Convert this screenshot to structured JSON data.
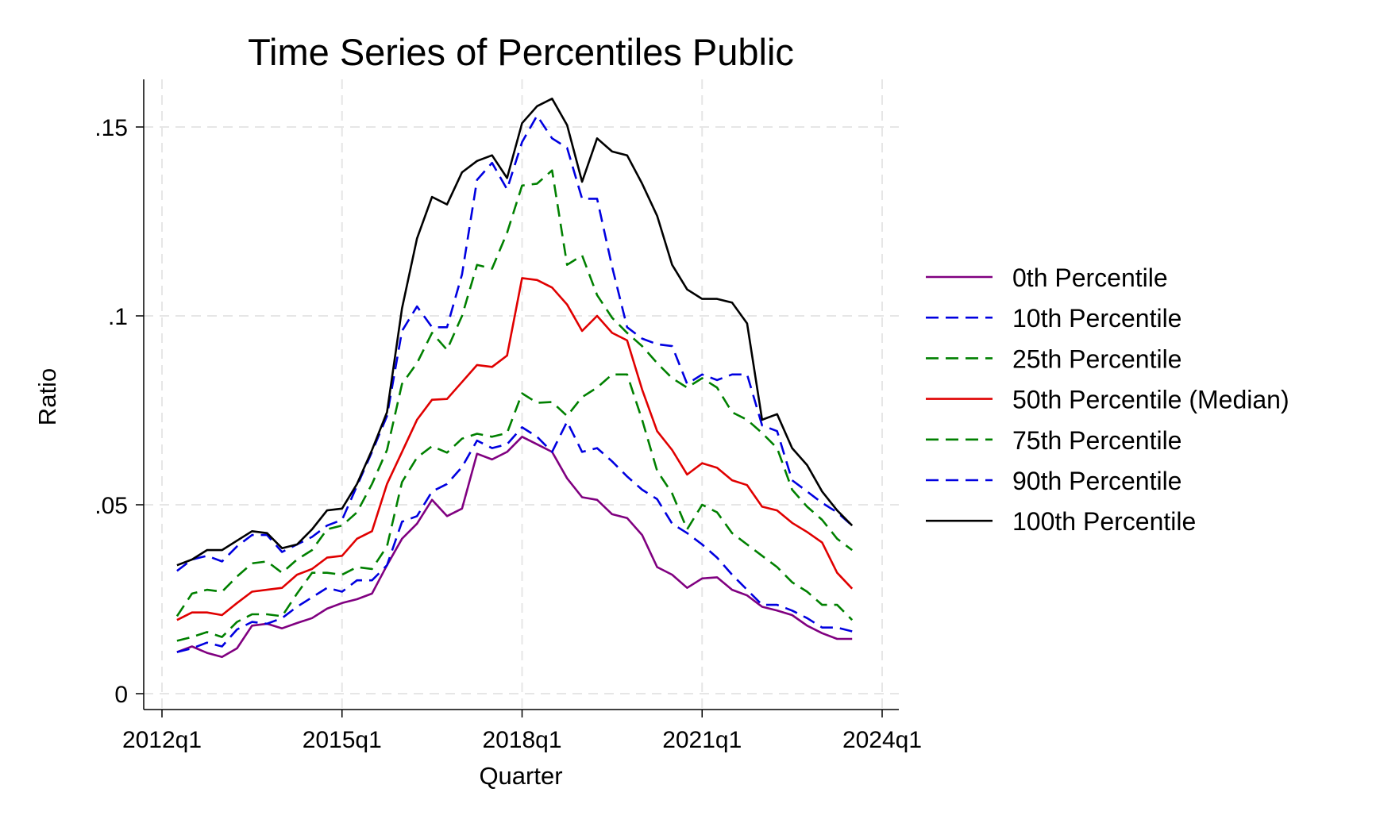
{
  "chart_data": {
    "type": "line",
    "title": "Time Series of Percentiles Public",
    "xlabel": "Quarter",
    "ylabel": "Ratio",
    "xlim": [
      "2012q1",
      "2024q1"
    ],
    "ylim": [
      0,
      0.16
    ],
    "x_ticks": [
      "2012q1",
      "2015q1",
      "2018q1",
      "2021q1",
      "2024q1"
    ],
    "y_ticks": [
      {
        "value": 0,
        "label": "0"
      },
      {
        "value": 0.05,
        "label": ".05"
      },
      {
        "value": 0.1,
        "label": ".1"
      },
      {
        "value": 0.15,
        "label": ".15"
      }
    ],
    "grid": true,
    "legend_position": "right",
    "x": [
      "2012q2",
      "2012q3",
      "2012q4",
      "2013q1",
      "2013q2",
      "2013q3",
      "2013q4",
      "2014q1",
      "2014q2",
      "2014q3",
      "2014q4",
      "2015q1",
      "2015q2",
      "2015q3",
      "2015q4",
      "2016q1",
      "2016q2",
      "2016q3",
      "2016q4",
      "2017q1",
      "2017q2",
      "2017q3",
      "2017q4",
      "2018q1",
      "2018q2",
      "2018q3",
      "2018q4",
      "2019q1",
      "2019q2",
      "2019q3",
      "2019q4",
      "2020q1",
      "2020q2",
      "2020q3",
      "2020q4",
      "2021q1",
      "2021q2",
      "2021q3",
      "2021q4",
      "2022q1",
      "2022q2",
      "2022q3",
      "2022q4",
      "2023q1",
      "2023q2",
      "2023q3"
    ],
    "series": [
      {
        "name": "0th Percentile",
        "color": "#800080",
        "dash": "solid",
        "values": [
          0.011,
          0.0125,
          0.0108,
          0.0097,
          0.012,
          0.018,
          0.0185,
          0.0173,
          0.0187,
          0.02,
          0.0225,
          0.024,
          0.025,
          0.0265,
          0.034,
          0.041,
          0.045,
          0.0513,
          0.047,
          0.049,
          0.0635,
          0.062,
          0.064,
          0.068,
          0.066,
          0.064,
          0.057,
          0.052,
          0.0513,
          0.0475,
          0.0465,
          0.042,
          0.0335,
          0.0315,
          0.028,
          0.0305,
          0.0308,
          0.0275,
          0.026,
          0.023,
          0.022,
          0.0208,
          0.018,
          0.016,
          0.0145,
          0.0145
        ]
      },
      {
        "name": "10th Percentile",
        "color": "#0000e0",
        "dash": "dashed",
        "values": [
          0.011,
          0.012,
          0.0135,
          0.0125,
          0.017,
          0.019,
          0.0185,
          0.02,
          0.023,
          0.0255,
          0.028,
          0.027,
          0.03,
          0.03,
          0.034,
          0.0455,
          0.047,
          0.0535,
          0.0555,
          0.06,
          0.067,
          0.065,
          0.066,
          0.0705,
          0.068,
          0.064,
          0.072,
          0.064,
          0.065,
          0.0615,
          0.0575,
          0.054,
          0.0515,
          0.045,
          0.0425,
          0.0395,
          0.036,
          0.0315,
          0.0275,
          0.0235,
          0.0235,
          0.022,
          0.02,
          0.0175,
          0.0175,
          0.0165
        ]
      },
      {
        "name": "25th Percentile",
        "color": "#008000",
        "dash": "dashed",
        "values": [
          0.014,
          0.015,
          0.0163,
          0.015,
          0.019,
          0.021,
          0.021,
          0.0205,
          0.0265,
          0.032,
          0.032,
          0.0315,
          0.0335,
          0.033,
          0.039,
          0.056,
          0.0625,
          0.0655,
          0.0638,
          0.0675,
          0.0688,
          0.068,
          0.069,
          0.0795,
          0.077,
          0.0772,
          0.0735,
          0.0785,
          0.081,
          0.0845,
          0.0845,
          0.0725,
          0.059,
          0.053,
          0.0435,
          0.05,
          0.048,
          0.0425,
          0.0395,
          0.0365,
          0.0335,
          0.0295,
          0.027,
          0.0235,
          0.0235,
          0.0195
        ]
      },
      {
        "name": "50th Percentile (Median)",
        "color": "#e00000",
        "dash": "solid",
        "values": [
          0.0195,
          0.0215,
          0.0215,
          0.0208,
          0.024,
          0.027,
          0.0275,
          0.028,
          0.0315,
          0.033,
          0.036,
          0.0365,
          0.041,
          0.043,
          0.0555,
          0.064,
          0.0725,
          0.0778,
          0.078,
          0.0825,
          0.087,
          0.0865,
          0.0895,
          0.11,
          0.1095,
          0.1075,
          0.103,
          0.096,
          0.1,
          0.0955,
          0.0935,
          0.0805,
          0.0695,
          0.0645,
          0.058,
          0.061,
          0.0598,
          0.0565,
          0.0552,
          0.0495,
          0.0485,
          0.0452,
          0.0428,
          0.04,
          0.032,
          0.0278
        ]
      },
      {
        "name": "75th Percentile",
        "color": "#008000",
        "dash": "dashed",
        "values": [
          0.0205,
          0.0265,
          0.0275,
          0.027,
          0.031,
          0.0345,
          0.035,
          0.032,
          0.0355,
          0.038,
          0.0435,
          0.0445,
          0.048,
          0.0555,
          0.0645,
          0.082,
          0.0875,
          0.0955,
          0.091,
          0.1,
          0.1135,
          0.1125,
          0.122,
          0.1345,
          0.135,
          0.1385,
          0.1135,
          0.116,
          0.1055,
          0.0995,
          0.0955,
          0.092,
          0.0875,
          0.0835,
          0.081,
          0.0835,
          0.081,
          0.0745,
          0.0725,
          0.069,
          0.065,
          0.054,
          0.0495,
          0.046,
          0.041,
          0.038
        ]
      },
      {
        "name": "90th Percentile",
        "color": "#0000e0",
        "dash": "dashed",
        "values": [
          0.0325,
          0.0355,
          0.0365,
          0.035,
          0.039,
          0.042,
          0.042,
          0.0375,
          0.0395,
          0.0415,
          0.0445,
          0.046,
          0.055,
          0.064,
          0.0735,
          0.096,
          0.1025,
          0.097,
          0.097,
          0.111,
          0.136,
          0.1405,
          0.1335,
          0.146,
          0.153,
          0.147,
          0.1445,
          0.131,
          0.131,
          0.113,
          0.097,
          0.094,
          0.0925,
          0.092,
          0.082,
          0.0845,
          0.083,
          0.0845,
          0.0845,
          0.071,
          0.0695,
          0.0565,
          0.0535,
          0.0505,
          0.048,
          0.0445
        ]
      },
      {
        "name": "100th Percentile",
        "color": "#000000",
        "dash": "solid",
        "values": [
          0.034,
          0.0355,
          0.038,
          0.038,
          0.0405,
          0.043,
          0.0425,
          0.0385,
          0.0395,
          0.0435,
          0.0485,
          0.049,
          0.0555,
          0.0645,
          0.0745,
          0.102,
          0.1205,
          0.1315,
          0.1295,
          0.138,
          0.141,
          0.1425,
          0.1365,
          0.151,
          0.1555,
          0.1575,
          0.1505,
          0.1355,
          0.147,
          0.1435,
          0.1425,
          0.135,
          0.1265,
          0.1135,
          0.107,
          0.1045,
          0.1045,
          0.1035,
          0.098,
          0.0725,
          0.074,
          0.065,
          0.0605,
          0.0535,
          0.0485,
          0.0445
        ]
      }
    ]
  }
}
